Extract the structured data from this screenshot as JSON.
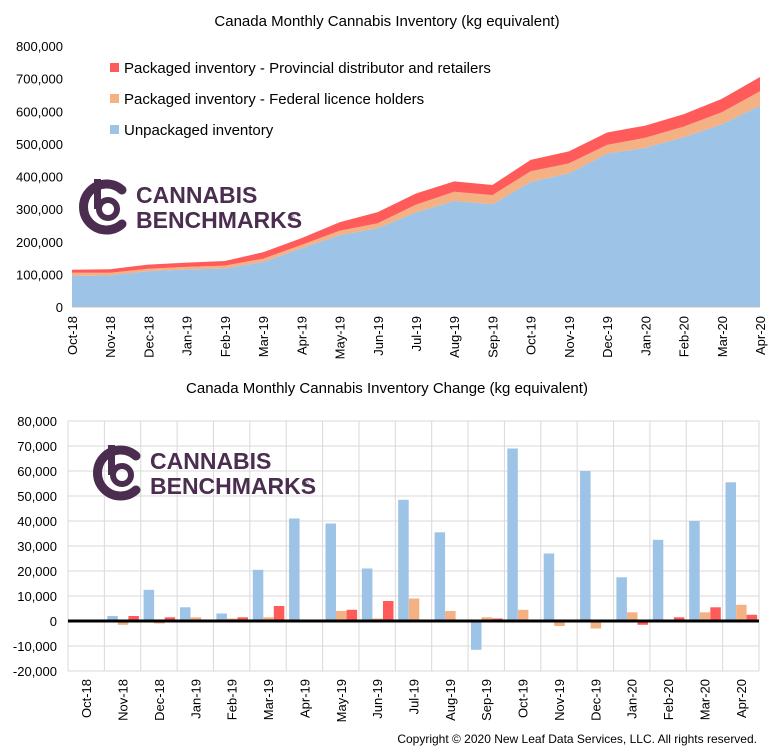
{
  "copyright": "Copyright © 2020 New Leaf Data Services, LLC. All rights reserved.",
  "logo": {
    "line1": "CANNABIS",
    "line2": "BENCHMARKS",
    "mark": "®",
    "color": "#4b2d4f"
  },
  "months": [
    "Oct-18",
    "Nov-18",
    "Dec-18",
    "Jan-19",
    "Feb-19",
    "Mar-19",
    "Apr-19",
    "May-19",
    "Jun-19",
    "Jul-19",
    "Aug-19",
    "Sep-19",
    "Oct-19",
    "Nov-19",
    "Dec-19",
    "Jan-20",
    "Feb-20",
    "Mar-20",
    "Apr-20"
  ],
  "chart_data": [
    {
      "type": "area",
      "stacked": true,
      "title": "Canada Monthly Cannabis Inventory (kg equivalent)",
      "ylim": [
        0,
        800000
      ],
      "yticks": [
        "800,000",
        "700,000",
        "600,000",
        "500,000",
        "400,000",
        "300,000",
        "200,000",
        "100,000",
        "0"
      ],
      "yticks_values": [
        800000,
        700000,
        600000,
        500000,
        400000,
        300000,
        200000,
        100000,
        0
      ],
      "legend_position": "top-left",
      "grid": false,
      "series": [
        {
          "name": "Unpackaged inventory",
          "color": "#9dc3e6",
          "values": [
            95000,
            97000,
            110000,
            115000,
            118000,
            138000,
            180000,
            220000,
            242000,
            290000,
            325000,
            315000,
            383000,
            410000,
            470000,
            488000,
            520000,
            560000,
            617000
          ]
        },
        {
          "name": "Packaged inventory - Federal licence holders",
          "color": "#f4b183",
          "values": [
            10000,
            8000,
            7000,
            8000,
            9000,
            10000,
            10000,
            14000,
            15000,
            24000,
            28000,
            28000,
            33000,
            30000,
            27000,
            31000,
            33000,
            37000,
            44000
          ]
        },
        {
          "name": "Packaged inventory - Provincial distributor and retailers",
          "color": "#ff5b5b",
          "values": [
            9000,
            11000,
            13000,
            13000,
            14000,
            20000,
            21000,
            26000,
            34000,
            34000,
            32000,
            31000,
            35000,
            37000,
            38000,
            37000,
            38000,
            41000,
            44000
          ]
        }
      ]
    },
    {
      "type": "bar",
      "title": "Canada Monthly Cannabis Inventory Change (kg equivalent)",
      "ylim": [
        -20000,
        80000
      ],
      "yticks": [
        "80,000",
        "70,000",
        "60,000",
        "50,000",
        "40,000",
        "30,000",
        "20,000",
        "10,000",
        "0",
        "-10,000",
        "-20,000"
      ],
      "yticks_values": [
        80000,
        70000,
        60000,
        50000,
        40000,
        30000,
        20000,
        10000,
        0,
        -10000,
        -20000
      ],
      "grid": true,
      "series": [
        {
          "color": "#9dc3e6",
          "values": [
            null,
            2000,
            12500,
            5500,
            3000,
            20500,
            41000,
            39000,
            21000,
            48500,
            35500,
            -11500,
            69000,
            27000,
            60000,
            17500,
            32500,
            40000,
            55500
          ]
        },
        {
          "color": "#f4b183",
          "values": [
            null,
            -1500,
            -1000,
            1500,
            1000,
            1500,
            0,
            4000,
            1000,
            9000,
            4000,
            1500,
            4500,
            -2000,
            -3000,
            3500,
            -500,
            3500,
            6500
          ]
        },
        {
          "color": "#ff5b5b",
          "values": [
            null,
            2000,
            1500,
            0,
            1500,
            6000,
            0,
            4500,
            8000,
            0,
            0,
            1000,
            0,
            0,
            0,
            -1500,
            1500,
            5500,
            2500
          ]
        }
      ]
    }
  ]
}
